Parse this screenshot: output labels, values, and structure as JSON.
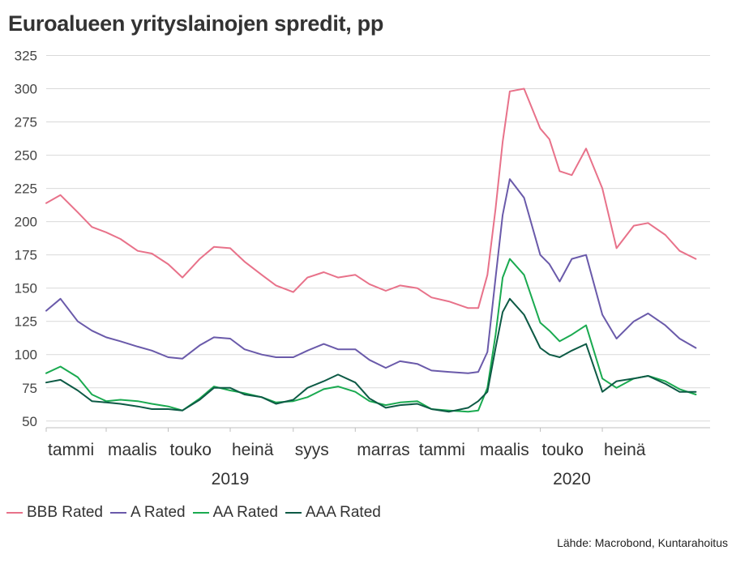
{
  "chart_data": {
    "type": "line",
    "title": "Euroalueen yrityslainojen spredit, pp",
    "source": "Lähde: Macrobond, Kuntarahoitus",
    "ylim": [
      45,
      332
    ],
    "yticks": [
      50,
      75,
      100,
      125,
      150,
      175,
      200,
      225,
      250,
      275,
      300,
      325
    ],
    "x_start": "2019-01-01",
    "x_end": "2020-10-15",
    "grid": "horizontal",
    "legend_position": "bottom-left",
    "month_labels": [
      {
        "label": "tammi",
        "date": "2019-01-01"
      },
      {
        "label": "maalis",
        "date": "2019-03-01"
      },
      {
        "label": "touko",
        "date": "2019-05-01"
      },
      {
        "label": "heinä",
        "date": "2019-07-01"
      },
      {
        "label": "syys",
        "date": "2019-09-01"
      },
      {
        "label": "marras",
        "date": "2019-11-01"
      },
      {
        "label": "tammi",
        "date": "2020-01-01"
      },
      {
        "label": "maalis",
        "date": "2020-03-01"
      },
      {
        "label": "touko",
        "date": "2020-05-01"
      },
      {
        "label": "heinä",
        "date": "2020-07-01"
      }
    ],
    "year_labels": [
      {
        "label": "2019",
        "date": "2019-07-01"
      },
      {
        "label": "2020",
        "date": "2020-06-01"
      }
    ],
    "x": [
      "2019-01-01",
      "2019-01-15",
      "2019-02-01",
      "2019-02-15",
      "2019-03-01",
      "2019-03-15",
      "2019-04-01",
      "2019-04-15",
      "2019-05-01",
      "2019-05-15",
      "2019-06-01",
      "2019-06-15",
      "2019-07-01",
      "2019-07-15",
      "2019-08-01",
      "2019-08-15",
      "2019-09-01",
      "2019-09-15",
      "2019-10-01",
      "2019-10-15",
      "2019-11-01",
      "2019-11-15",
      "2019-12-01",
      "2019-12-15",
      "2020-01-01",
      "2020-01-15",
      "2020-02-01",
      "2020-02-20",
      "2020-03-01",
      "2020-03-10",
      "2020-03-18",
      "2020-03-25",
      "2020-04-01",
      "2020-04-15",
      "2020-05-01",
      "2020-05-10",
      "2020-05-20",
      "2020-06-01",
      "2020-06-15",
      "2020-07-01",
      "2020-07-15",
      "2020-08-01",
      "2020-08-15",
      "2020-09-01",
      "2020-09-15",
      "2020-10-01"
    ],
    "series": [
      {
        "name": "BBB Rated",
        "color": "#e8728a",
        "values": [
          214,
          220,
          207,
          196,
          192,
          187,
          178,
          176,
          168,
          158,
          172,
          181,
          180,
          170,
          160,
          152,
          147,
          158,
          162,
          158,
          160,
          153,
          148,
          152,
          150,
          143,
          140,
          135,
          135,
          160,
          210,
          260,
          298,
          300,
          270,
          262,
          238,
          235,
          255,
          225,
          180,
          197,
          199,
          190,
          178,
          172
        ]
      },
      {
        "name": "A Rated",
        "color": "#6a5aaa",
        "values": [
          133,
          142,
          125,
          118,
          113,
          110,
          106,
          103,
          98,
          97,
          107,
          113,
          112,
          104,
          100,
          98,
          98,
          103,
          108,
          104,
          104,
          96,
          90,
          95,
          93,
          88,
          87,
          86,
          87,
          102,
          158,
          205,
          232,
          218,
          175,
          168,
          155,
          172,
          175,
          130,
          112,
          125,
          131,
          122,
          112,
          105
        ]
      },
      {
        "name": "AA Rated",
        "color": "#1aaa50",
        "values": [
          86,
          91,
          83,
          70,
          65,
          66,
          65,
          63,
          61,
          58,
          67,
          76,
          73,
          71,
          68,
          64,
          65,
          68,
          74,
          76,
          72,
          65,
          62,
          64,
          65,
          59,
          58,
          57,
          58,
          75,
          115,
          158,
          172,
          160,
          124,
          118,
          110,
          115,
          122,
          82,
          75,
          82,
          84,
          80,
          74,
          70
        ]
      },
      {
        "name": "AAA Rated",
        "color": "#0d5a45",
        "values": [
          79,
          81,
          73,
          65,
          64,
          63,
          61,
          59,
          59,
          58,
          66,
          75,
          75,
          70,
          68,
          63,
          66,
          75,
          80,
          85,
          79,
          67,
          60,
          62,
          63,
          59,
          57,
          60,
          65,
          72,
          105,
          132,
          142,
          130,
          105,
          100,
          98,
          103,
          108,
          72,
          80,
          82,
          84,
          78,
          72,
          72
        ]
      }
    ]
  }
}
